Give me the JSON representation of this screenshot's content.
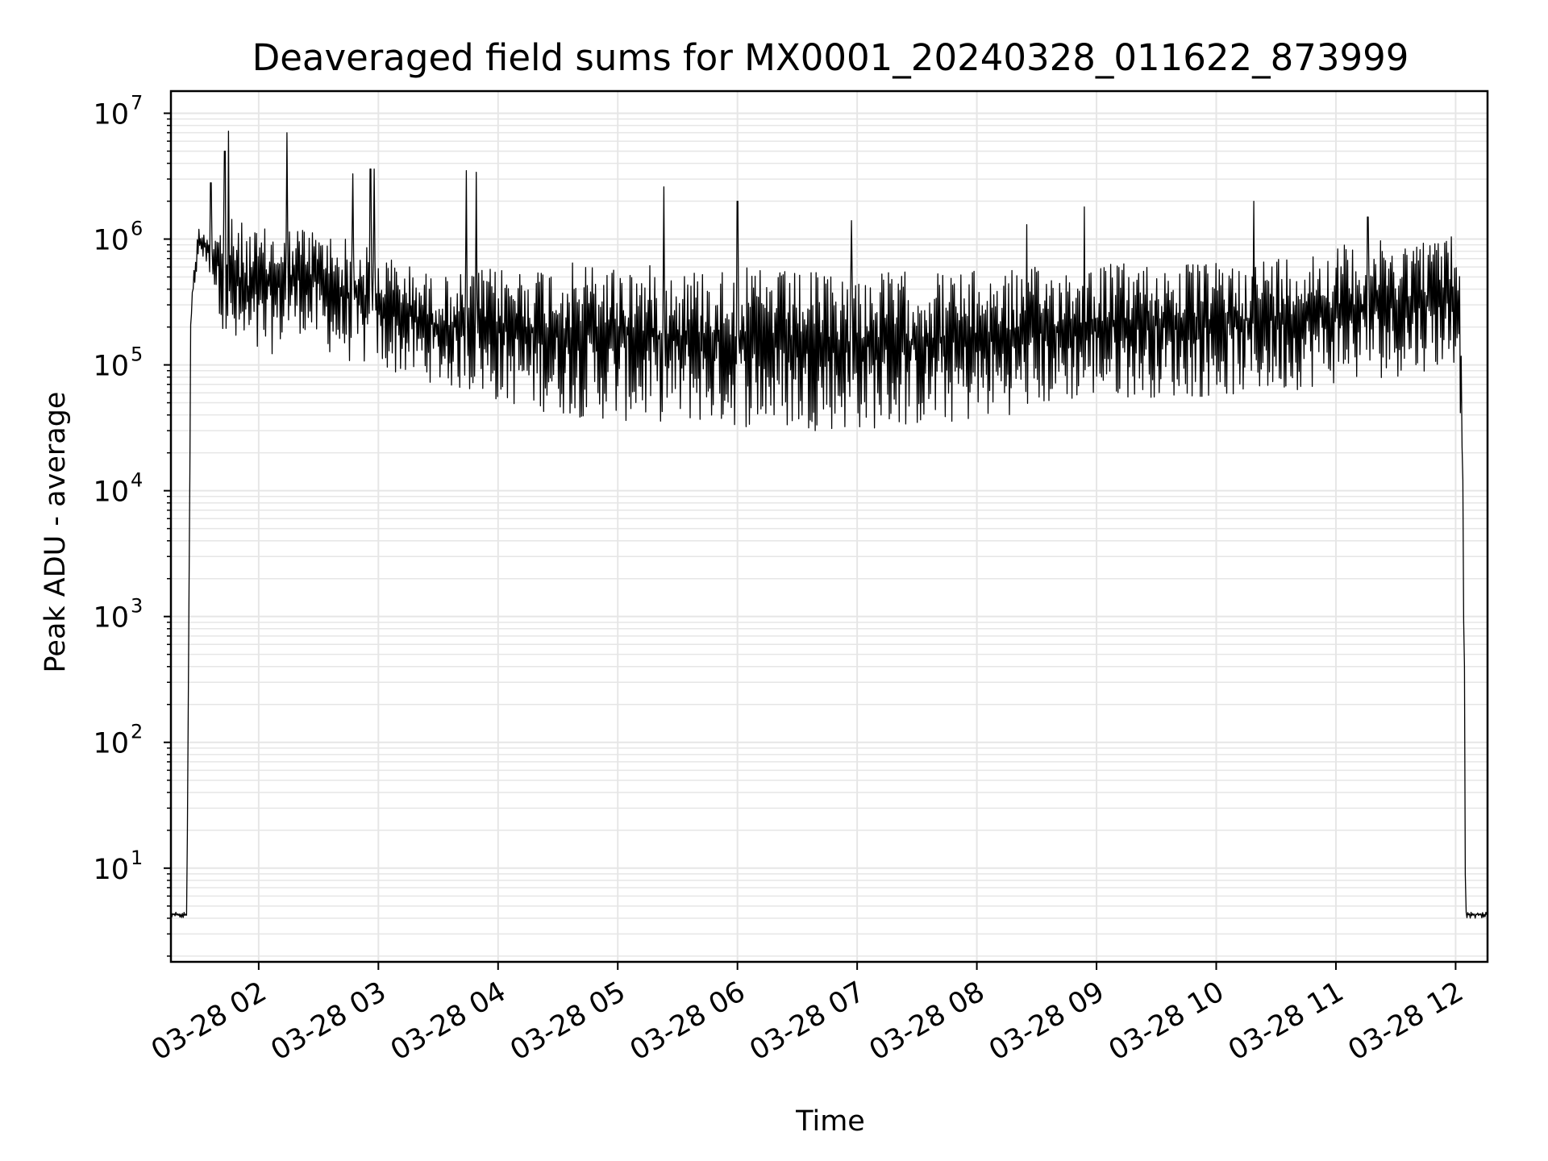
{
  "chart_data": {
    "type": "line",
    "title": "Deaveraged field sums for MX0001_20240328_011622_873999",
    "xlabel": "Time",
    "ylabel": "Peak ADU - average",
    "y_scale": "log",
    "ylim": [
      1.8,
      15000000
    ],
    "xlim": [
      "2024-03-28 01:16",
      "2024-03-28 12:16"
    ],
    "grid": true,
    "grid_minor": true,
    "line_color": "#000000",
    "grid_color": "#e6e6e6",
    "x_ticks": [
      {
        "t": "2024-03-28 02:00",
        "label": "03-28 02"
      },
      {
        "t": "2024-03-28 03:00",
        "label": "03-28 03"
      },
      {
        "t": "2024-03-28 04:00",
        "label": "03-28 04"
      },
      {
        "t": "2024-03-28 05:00",
        "label": "03-28 05"
      },
      {
        "t": "2024-03-28 06:00",
        "label": "03-28 06"
      },
      {
        "t": "2024-03-28 07:00",
        "label": "03-28 07"
      },
      {
        "t": "2024-03-28 08:00",
        "label": "03-28 08"
      },
      {
        "t": "2024-03-28 09:00",
        "label": "03-28 09"
      },
      {
        "t": "2024-03-28 10:00",
        "label": "03-28 10"
      },
      {
        "t": "2024-03-28 11:00",
        "label": "03-28 11"
      },
      {
        "t": "2024-03-28 12:00",
        "label": "03-28 12"
      }
    ],
    "y_ticks": [
      {
        "value": 10,
        "base": "10",
        "exp": "1"
      },
      {
        "value": 100,
        "base": "10",
        "exp": "2"
      },
      {
        "value": 1000,
        "base": "10",
        "exp": "3"
      },
      {
        "value": 10000,
        "base": "10",
        "exp": "4"
      },
      {
        "value": 100000,
        "base": "10",
        "exp": "5"
      },
      {
        "value": 1000000,
        "base": "10",
        "exp": "6"
      },
      {
        "value": 10000000,
        "base": "10",
        "exp": "7"
      }
    ],
    "series": [
      {
        "color": "#000000",
        "envelope": [
          {
            "t": "2024-03-28 01:16",
            "low": 4,
            "high": 4.5
          },
          {
            "t": "2024-03-28 01:24",
            "low": 4,
            "high": 4.5
          },
          {
            "t": "2024-03-28 01:26",
            "low": 200000,
            "high": 400000
          },
          {
            "t": "2024-03-28 01:30",
            "low": 800000,
            "high": 1300000
          },
          {
            "t": "2024-03-28 01:36",
            "low": 500000,
            "high": 1100000
          },
          {
            "t": "2024-03-28 01:45",
            "low": 120000,
            "high": 1500000
          },
          {
            "t": "2024-03-28 02:00",
            "low": 100000,
            "high": 1200000
          },
          {
            "t": "2024-03-28 02:20",
            "low": 180000,
            "high": 1300000
          },
          {
            "t": "2024-03-28 02:40",
            "low": 110000,
            "high": 1100000
          },
          {
            "t": "2024-03-28 03:00",
            "low": 90000,
            "high": 800000
          },
          {
            "t": "2024-03-28 03:30",
            "low": 70000,
            "high": 500000
          },
          {
            "t": "2024-03-28 04:00",
            "low": 50000,
            "high": 600000
          },
          {
            "t": "2024-03-28 04:30",
            "low": 40000,
            "high": 650000
          },
          {
            "t": "2024-03-28 05:00",
            "low": 35000,
            "high": 650000
          },
          {
            "t": "2024-03-28 05:30",
            "low": 35000,
            "high": 600000
          },
          {
            "t": "2024-03-28 06:00",
            "low": 32000,
            "high": 600000
          },
          {
            "t": "2024-03-28 06:30",
            "low": 30000,
            "high": 550000
          },
          {
            "t": "2024-03-28 07:00",
            "low": 30000,
            "high": 550000
          },
          {
            "t": "2024-03-28 07:30",
            "low": 32000,
            "high": 560000
          },
          {
            "t": "2024-03-28 08:00",
            "low": 35000,
            "high": 560000
          },
          {
            "t": "2024-03-28 08:30",
            "low": 45000,
            "high": 600000
          },
          {
            "t": "2024-03-28 09:00",
            "low": 55000,
            "high": 650000
          },
          {
            "t": "2024-03-28 09:30",
            "low": 55000,
            "high": 650000
          },
          {
            "t": "2024-03-28 10:00",
            "low": 55000,
            "high": 650000
          },
          {
            "t": "2024-03-28 10:30",
            "low": 60000,
            "high": 750000
          },
          {
            "t": "2024-03-28 11:00",
            "low": 70000,
            "high": 900000
          },
          {
            "t": "2024-03-28 11:30",
            "low": 80000,
            "high": 1000000
          },
          {
            "t": "2024-03-28 12:00",
            "low": 100000,
            "high": 1100000
          },
          {
            "t": "2024-03-28 12:02",
            "low": 100000,
            "high": 900000
          },
          {
            "t": "2024-03-28 12:04",
            "low": 1000,
            "high": 20000
          },
          {
            "t": "2024-03-28 12:05",
            "low": 4,
            "high": 4.5
          },
          {
            "t": "2024-03-28 12:16",
            "low": 4,
            "high": 4.5
          }
        ],
        "spikes": [
          {
            "t": "2024-03-28 01:36",
            "value": 2800000
          },
          {
            "t": "2024-03-28 01:43",
            "value": 5000000
          },
          {
            "t": "2024-03-28 01:45",
            "value": 7200000
          },
          {
            "t": "2024-03-28 02:14",
            "value": 7000000
          },
          {
            "t": "2024-03-28 02:47",
            "value": 3300000
          },
          {
            "t": "2024-03-28 02:56",
            "value": 3600000
          },
          {
            "t": "2024-03-28 02:58",
            "value": 3600000
          },
          {
            "t": "2024-03-28 03:44",
            "value": 3500000
          },
          {
            "t": "2024-03-28 03:49",
            "value": 3400000
          },
          {
            "t": "2024-03-28 05:23",
            "value": 2600000
          },
          {
            "t": "2024-03-28 06:00",
            "value": 2000000
          },
          {
            "t": "2024-03-28 06:57",
            "value": 1400000
          },
          {
            "t": "2024-03-28 08:25",
            "value": 1300000
          },
          {
            "t": "2024-03-28 08:54",
            "value": 1800000
          },
          {
            "t": "2024-03-28 10:19",
            "value": 2000000
          },
          {
            "t": "2024-03-28 11:16",
            "value": 1500000
          }
        ]
      }
    ]
  }
}
